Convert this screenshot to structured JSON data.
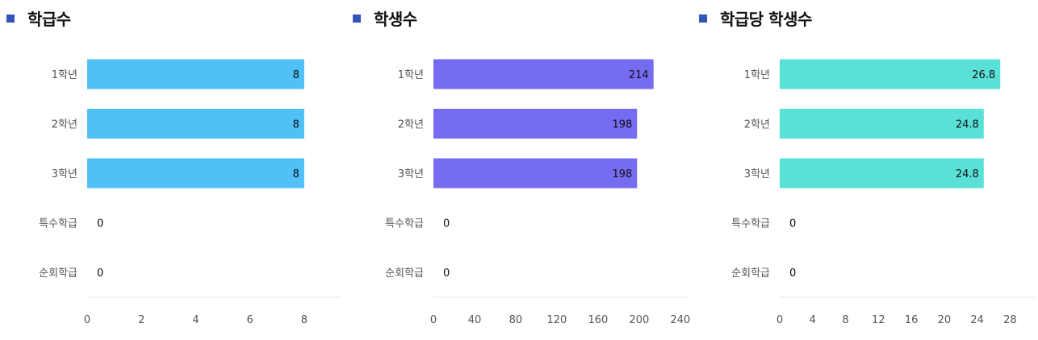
{
  "chart_data": [
    {
      "type": "bar",
      "orientation": "horizontal",
      "title": "학급수",
      "categories": [
        "1학년",
        "2학년",
        "3학년",
        "특수학급",
        "순회학급"
      ],
      "values": [
        8,
        8,
        8,
        0,
        0
      ],
      "value_labels": [
        "8",
        "8",
        "8",
        "0",
        "0"
      ],
      "xlim": [
        0,
        9.4
      ],
      "xticks": [
        0,
        2,
        4,
        6,
        8
      ],
      "color": "#4fc1f7",
      "grid": false,
      "legend": "none"
    },
    {
      "type": "bar",
      "orientation": "horizontal",
      "title": "학생수",
      "categories": [
        "1학년",
        "2학년",
        "3학년",
        "특수학급",
        "순회학급"
      ],
      "values": [
        214,
        198,
        198,
        0,
        0
      ],
      "value_labels": [
        "214",
        "198",
        "198",
        "0",
        "0"
      ],
      "xlim": [
        0,
        248
      ],
      "xticks": [
        0,
        40,
        80,
        120,
        160,
        200,
        240
      ],
      "color": "#766cf2",
      "grid": false,
      "legend": "none"
    },
    {
      "type": "bar",
      "orientation": "horizontal",
      "title": "학급당 학생수",
      "categories": [
        "1학년",
        "2학년",
        "3학년",
        "특수학급",
        "순회학급"
      ],
      "values": [
        26.8,
        24.8,
        24.8,
        0,
        0
      ],
      "value_labels": [
        "26.8",
        "24.8",
        "24.8",
        "0",
        "0"
      ],
      "xlim": [
        0,
        31
      ],
      "xticks": [
        0,
        4,
        8,
        12,
        16,
        20,
        24,
        28
      ],
      "color": "#59e1d8",
      "grid": false,
      "legend": "none"
    }
  ]
}
